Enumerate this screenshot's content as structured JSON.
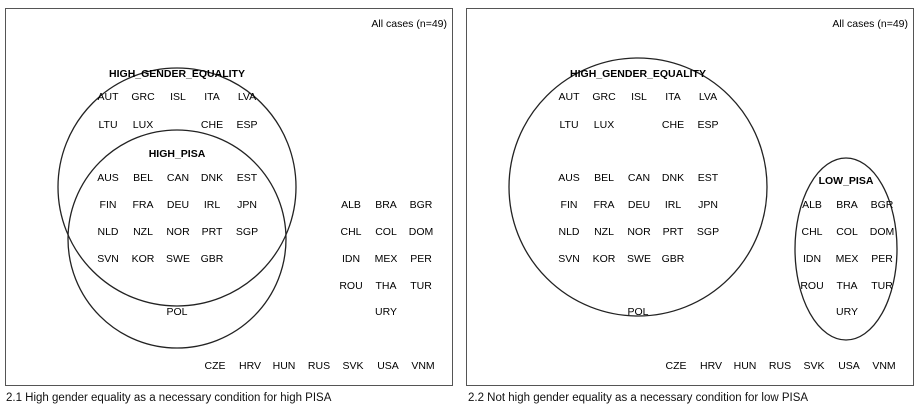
{
  "panels": [
    {
      "total": "All cases (n=49)",
      "caption": "2.1 High gender equality as a necessary condition for high PISA",
      "sets": [
        {
          "label": "HIGH_GENDER_EQUALITY",
          "members": [
            "AUT",
            "GRC",
            "ISL",
            "ITA",
            "LVA",
            "LTU",
            "LUX",
            "CHE",
            "ESP"
          ]
        },
        {
          "label": "HIGH_PISA",
          "members": [
            "AUS",
            "BEL",
            "CAN",
            "DNK",
            "EST",
            "FIN",
            "FRA",
            "DEU",
            "IRL",
            "JPN",
            "NLD",
            "NZL",
            "NOR",
            "PRT",
            "SGP",
            "SVN",
            "KOR",
            "SWE",
            "GBR",
            "POL"
          ]
        }
      ],
      "others": [
        "ALB",
        "BRA",
        "BGR",
        "CHL",
        "COL",
        "DOM",
        "IDN",
        "MEX",
        "PER",
        "ROU",
        "THA",
        "TUR",
        "URY",
        "CZE",
        "HRV",
        "HUN",
        "RUS",
        "SVK",
        "USA",
        "VNM"
      ]
    },
    {
      "total": "All cases (n=49)",
      "caption": "2.2 Not high gender equality as a necessary condition for low PISA",
      "sets": [
        {
          "label": "HIGH_GENDER_EQUALITY",
          "members": [
            "AUT",
            "GRC",
            "ISL",
            "ITA",
            "LVA",
            "LTU",
            "LUX",
            "CHE",
            "ESP",
            "AUS",
            "BEL",
            "CAN",
            "DNK",
            "EST",
            "FIN",
            "FRA",
            "DEU",
            "IRL",
            "JPN",
            "NLD",
            "NZL",
            "NOR",
            "PRT",
            "SGP",
            "SVN",
            "KOR",
            "SWE",
            "GBR"
          ]
        },
        {
          "label": "LOW_PISA",
          "members": [
            "ALB",
            "BRA",
            "BGR",
            "CHL",
            "COL",
            "DOM",
            "IDN",
            "MEX",
            "PER",
            "ROU",
            "THA",
            "TUR",
            "URY"
          ]
        }
      ],
      "others": [
        "POL",
        "CZE",
        "HRV",
        "HUN",
        "RUS",
        "SVK",
        "USA",
        "VNM"
      ]
    }
  ]
}
